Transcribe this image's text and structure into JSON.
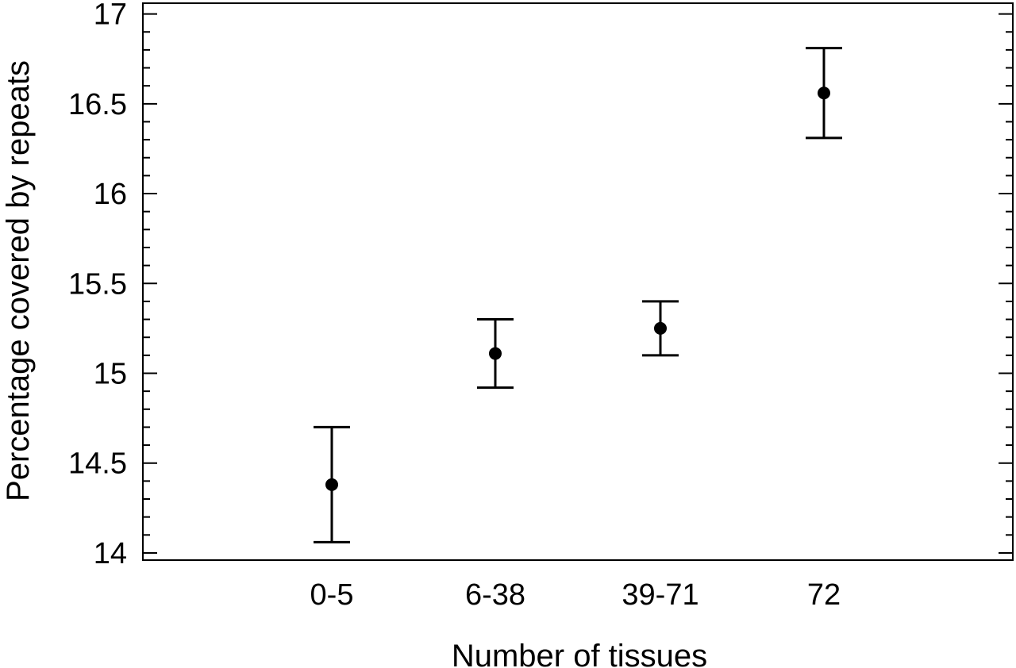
{
  "chart_data": {
    "type": "scatter",
    "title": "",
    "xlabel": "Number of tissues",
    "ylabel": "Percentage covered by repeats",
    "categories": [
      "0-5",
      "6-38",
      "39-71",
      "72"
    ],
    "series": [
      {
        "values": [
          14.38,
          15.11,
          15.25,
          16.56
        ],
        "error_low": [
          14.06,
          14.92,
          15.1,
          16.31
        ],
        "error_high": [
          14.7,
          15.3,
          15.4,
          16.81
        ]
      }
    ],
    "ylim": [
      13.96,
      17.06
    ],
    "y_ticks": [
      "14",
      "14.5",
      "15",
      "15.5",
      "16",
      "16.5",
      "17"
    ],
    "grid": false,
    "legend": "none",
    "colors": {
      "marker": "#000000",
      "axis": "#000000",
      "background": "#ffffff"
    }
  }
}
